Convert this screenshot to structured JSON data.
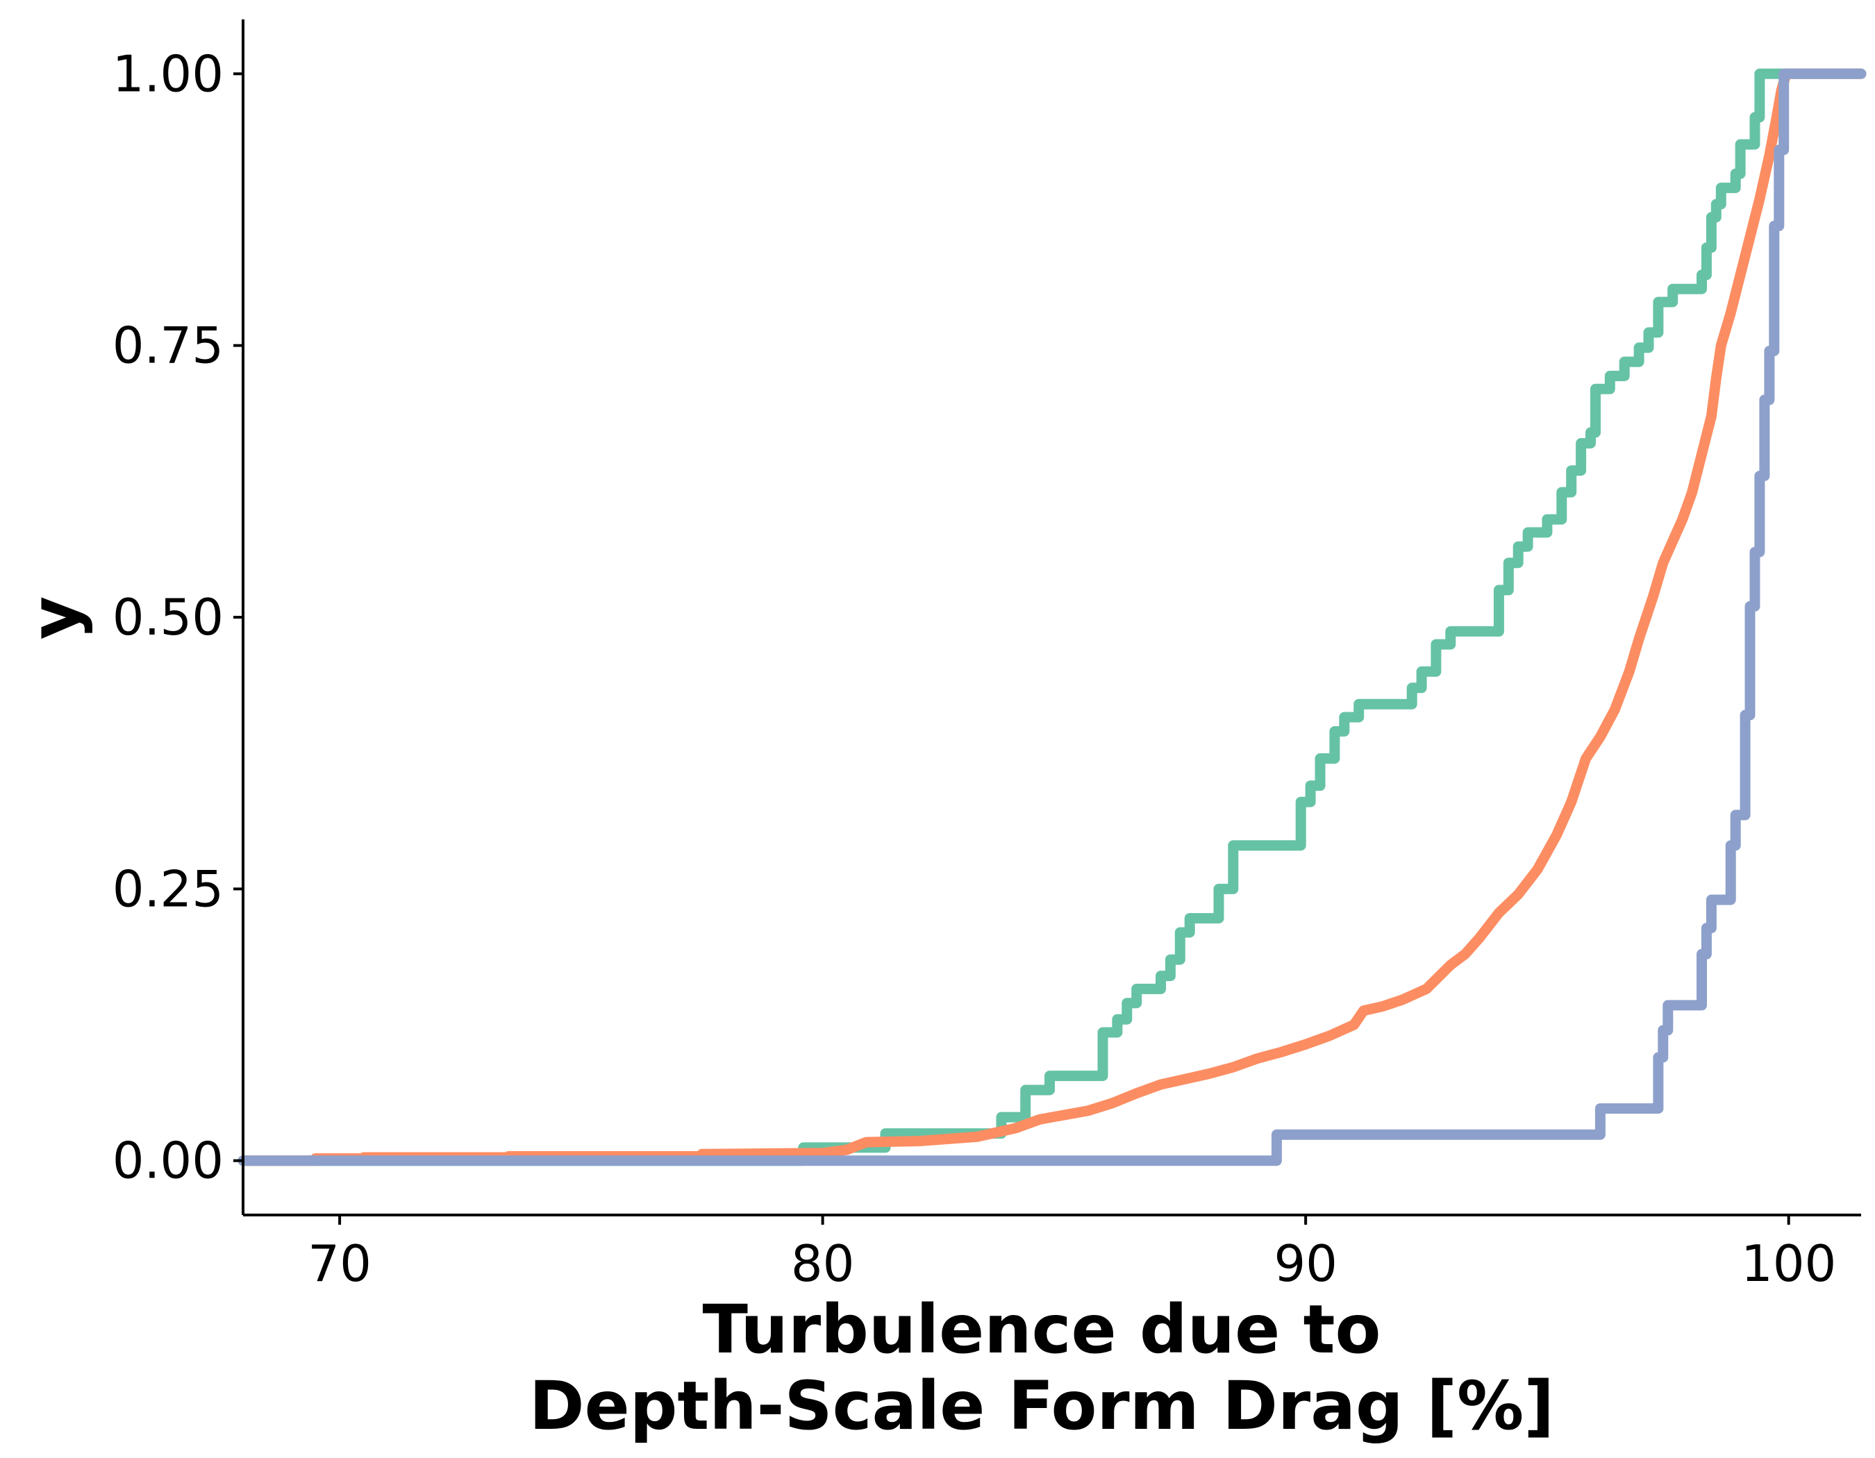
{
  "chart_data": {
    "type": "line",
    "step": true,
    "xlabel": [
      "Turbulence due to",
      "Depth-Scale Form Drag [%]"
    ],
    "ylabel": "y",
    "xlim": [
      68,
      101.5
    ],
    "ylim": [
      -0.05,
      1.05
    ],
    "x_ticks": [
      70,
      80,
      90,
      100
    ],
    "x_tick_labels": [
      "70",
      "80",
      "90",
      "100"
    ],
    "y_ticks": [
      0.0,
      0.25,
      0.5,
      0.75,
      1.0
    ],
    "y_tick_labels": [
      "0.00",
      "0.25",
      "0.50",
      "0.75",
      "1.00"
    ],
    "grid": false,
    "legend": "none",
    "series": [
      {
        "color": "#66c2a5",
        "points": [
          [
            68,
            0.0
          ],
          [
            79.6,
            0.0
          ],
          [
            79.6,
            0.012
          ],
          [
            81.3,
            0.012
          ],
          [
            81.3,
            0.025
          ],
          [
            83.7,
            0.025
          ],
          [
            83.7,
            0.04
          ],
          [
            84.2,
            0.04
          ],
          [
            84.2,
            0.065
          ],
          [
            84.7,
            0.065
          ],
          [
            84.7,
            0.078
          ],
          [
            85.8,
            0.078
          ],
          [
            85.8,
            0.118
          ],
          [
            86.1,
            0.118
          ],
          [
            86.1,
            0.13
          ],
          [
            86.3,
            0.13
          ],
          [
            86.3,
            0.145
          ],
          [
            86.5,
            0.145
          ],
          [
            86.5,
            0.158
          ],
          [
            87.0,
            0.158
          ],
          [
            87.0,
            0.17
          ],
          [
            87.2,
            0.17
          ],
          [
            87.2,
            0.185
          ],
          [
            87.4,
            0.185
          ],
          [
            87.4,
            0.21
          ],
          [
            87.6,
            0.21
          ],
          [
            87.6,
            0.223
          ],
          [
            88.2,
            0.223
          ],
          [
            88.2,
            0.25
          ],
          [
            88.5,
            0.25
          ],
          [
            88.5,
            0.29
          ],
          [
            89.9,
            0.29
          ],
          [
            89.9,
            0.33
          ],
          [
            90.1,
            0.33
          ],
          [
            90.1,
            0.345
          ],
          [
            90.3,
            0.345
          ],
          [
            90.3,
            0.37
          ],
          [
            90.6,
            0.37
          ],
          [
            90.6,
            0.395
          ],
          [
            90.8,
            0.395
          ],
          [
            90.8,
            0.408
          ],
          [
            91.1,
            0.408
          ],
          [
            91.1,
            0.42
          ],
          [
            92.2,
            0.42
          ],
          [
            92.2,
            0.435
          ],
          [
            92.4,
            0.435
          ],
          [
            92.4,
            0.45
          ],
          [
            92.7,
            0.45
          ],
          [
            92.7,
            0.475
          ],
          [
            93.0,
            0.475
          ],
          [
            93.0,
            0.487
          ],
          [
            94.0,
            0.487
          ],
          [
            94.0,
            0.525
          ],
          [
            94.2,
            0.525
          ],
          [
            94.2,
            0.55
          ],
          [
            94.4,
            0.55
          ],
          [
            94.4,
            0.565
          ],
          [
            94.6,
            0.565
          ],
          [
            94.6,
            0.578
          ],
          [
            95.0,
            0.578
          ],
          [
            95.0,
            0.59
          ],
          [
            95.3,
            0.59
          ],
          [
            95.3,
            0.615
          ],
          [
            95.5,
            0.615
          ],
          [
            95.5,
            0.635
          ],
          [
            95.7,
            0.635
          ],
          [
            95.7,
            0.66
          ],
          [
            95.9,
            0.66
          ],
          [
            95.9,
            0.67
          ],
          [
            96.0,
            0.67
          ],
          [
            96.0,
            0.71
          ],
          [
            96.3,
            0.71
          ],
          [
            96.3,
            0.722
          ],
          [
            96.6,
            0.722
          ],
          [
            96.6,
            0.735
          ],
          [
            96.9,
            0.735
          ],
          [
            96.9,
            0.748
          ],
          [
            97.1,
            0.748
          ],
          [
            97.1,
            0.762
          ],
          [
            97.3,
            0.762
          ],
          [
            97.3,
            0.79
          ],
          [
            97.6,
            0.79
          ],
          [
            97.6,
            0.802
          ],
          [
            98.2,
            0.802
          ],
          [
            98.2,
            0.815
          ],
          [
            98.3,
            0.815
          ],
          [
            98.3,
            0.84
          ],
          [
            98.4,
            0.84
          ],
          [
            98.4,
            0.868
          ],
          [
            98.5,
            0.868
          ],
          [
            98.5,
            0.88
          ],
          [
            98.6,
            0.88
          ],
          [
            98.6,
            0.895
          ],
          [
            98.9,
            0.895
          ],
          [
            98.9,
            0.908
          ],
          [
            99.0,
            0.908
          ],
          [
            99.0,
            0.935
          ],
          [
            99.3,
            0.935
          ],
          [
            99.3,
            0.96
          ],
          [
            99.4,
            0.96
          ],
          [
            99.4,
            1.0
          ],
          [
            101.5,
            1.0
          ]
        ]
      },
      {
        "color": "#fc8d62",
        "points": [
          [
            68,
            0.0
          ],
          [
            69.5,
            0.0
          ],
          [
            69.5,
            0.002
          ],
          [
            70.5,
            0.002
          ],
          [
            70.5,
            0.003
          ],
          [
            73.5,
            0.003
          ],
          [
            73.5,
            0.004
          ],
          [
            77.5,
            0.004
          ],
          [
            77.5,
            0.006
          ],
          [
            80.0,
            0.007
          ],
          [
            80.5,
            0.01
          ],
          [
            80.9,
            0.017
          ],
          [
            82.0,
            0.018
          ],
          [
            83.2,
            0.022
          ],
          [
            84.0,
            0.03
          ],
          [
            84.5,
            0.038
          ],
          [
            85.0,
            0.042
          ],
          [
            85.5,
            0.046
          ],
          [
            86.0,
            0.053
          ],
          [
            86.5,
            0.062
          ],
          [
            87.0,
            0.07
          ],
          [
            87.5,
            0.075
          ],
          [
            88.0,
            0.08
          ],
          [
            88.5,
            0.086
          ],
          [
            89.0,
            0.094
          ],
          [
            89.5,
            0.1
          ],
          [
            90.0,
            0.107
          ],
          [
            90.5,
            0.115
          ],
          [
            91.0,
            0.125
          ],
          [
            91.2,
            0.138
          ],
          [
            91.6,
            0.142
          ],
          [
            92.0,
            0.148
          ],
          [
            92.5,
            0.158
          ],
          [
            93.0,
            0.18
          ],
          [
            93.3,
            0.19
          ],
          [
            93.6,
            0.205
          ],
          [
            94.0,
            0.228
          ],
          [
            94.4,
            0.245
          ],
          [
            94.8,
            0.268
          ],
          [
            95.2,
            0.3
          ],
          [
            95.5,
            0.33
          ],
          [
            95.8,
            0.37
          ],
          [
            96.1,
            0.39
          ],
          [
            96.4,
            0.415
          ],
          [
            96.7,
            0.45
          ],
          [
            96.9,
            0.48
          ],
          [
            97.2,
            0.52
          ],
          [
            97.4,
            0.55
          ],
          [
            97.6,
            0.57
          ],
          [
            97.8,
            0.59
          ],
          [
            98.0,
            0.615
          ],
          [
            98.2,
            0.65
          ],
          [
            98.4,
            0.685
          ],
          [
            98.5,
            0.72
          ],
          [
            98.6,
            0.75
          ],
          [
            98.8,
            0.78
          ],
          [
            99.0,
            0.815
          ],
          [
            99.2,
            0.85
          ],
          [
            99.4,
            0.885
          ],
          [
            99.6,
            0.925
          ],
          [
            99.75,
            0.96
          ],
          [
            99.85,
            0.985
          ],
          [
            99.95,
            1.0
          ],
          [
            101.5,
            1.0
          ]
        ]
      },
      {
        "color": "#8da0cb",
        "points": [
          [
            68,
            0.0
          ],
          [
            89.4,
            0.0
          ],
          [
            89.4,
            0.024
          ],
          [
            96.1,
            0.024
          ],
          [
            96.1,
            0.048
          ],
          [
            97.3,
            0.048
          ],
          [
            97.3,
            0.095
          ],
          [
            97.4,
            0.095
          ],
          [
            97.4,
            0.12
          ],
          [
            97.5,
            0.12
          ],
          [
            97.5,
            0.143
          ],
          [
            98.2,
            0.143
          ],
          [
            98.2,
            0.19
          ],
          [
            98.3,
            0.19
          ],
          [
            98.3,
            0.214
          ],
          [
            98.4,
            0.214
          ],
          [
            98.4,
            0.24
          ],
          [
            98.8,
            0.24
          ],
          [
            98.8,
            0.29
          ],
          [
            98.9,
            0.29
          ],
          [
            98.9,
            0.318
          ],
          [
            99.1,
            0.318
          ],
          [
            99.1,
            0.41
          ],
          [
            99.2,
            0.41
          ],
          [
            99.2,
            0.51
          ],
          [
            99.3,
            0.51
          ],
          [
            99.3,
            0.56
          ],
          [
            99.4,
            0.56
          ],
          [
            99.4,
            0.63
          ],
          [
            99.5,
            0.63
          ],
          [
            99.5,
            0.7
          ],
          [
            99.6,
            0.7
          ],
          [
            99.6,
            0.745
          ],
          [
            99.7,
            0.745
          ],
          [
            99.7,
            0.86
          ],
          [
            99.8,
            0.86
          ],
          [
            99.8,
            0.93
          ],
          [
            99.9,
            0.93
          ],
          [
            99.9,
            1.0
          ],
          [
            101.5,
            1.0
          ]
        ]
      }
    ]
  }
}
